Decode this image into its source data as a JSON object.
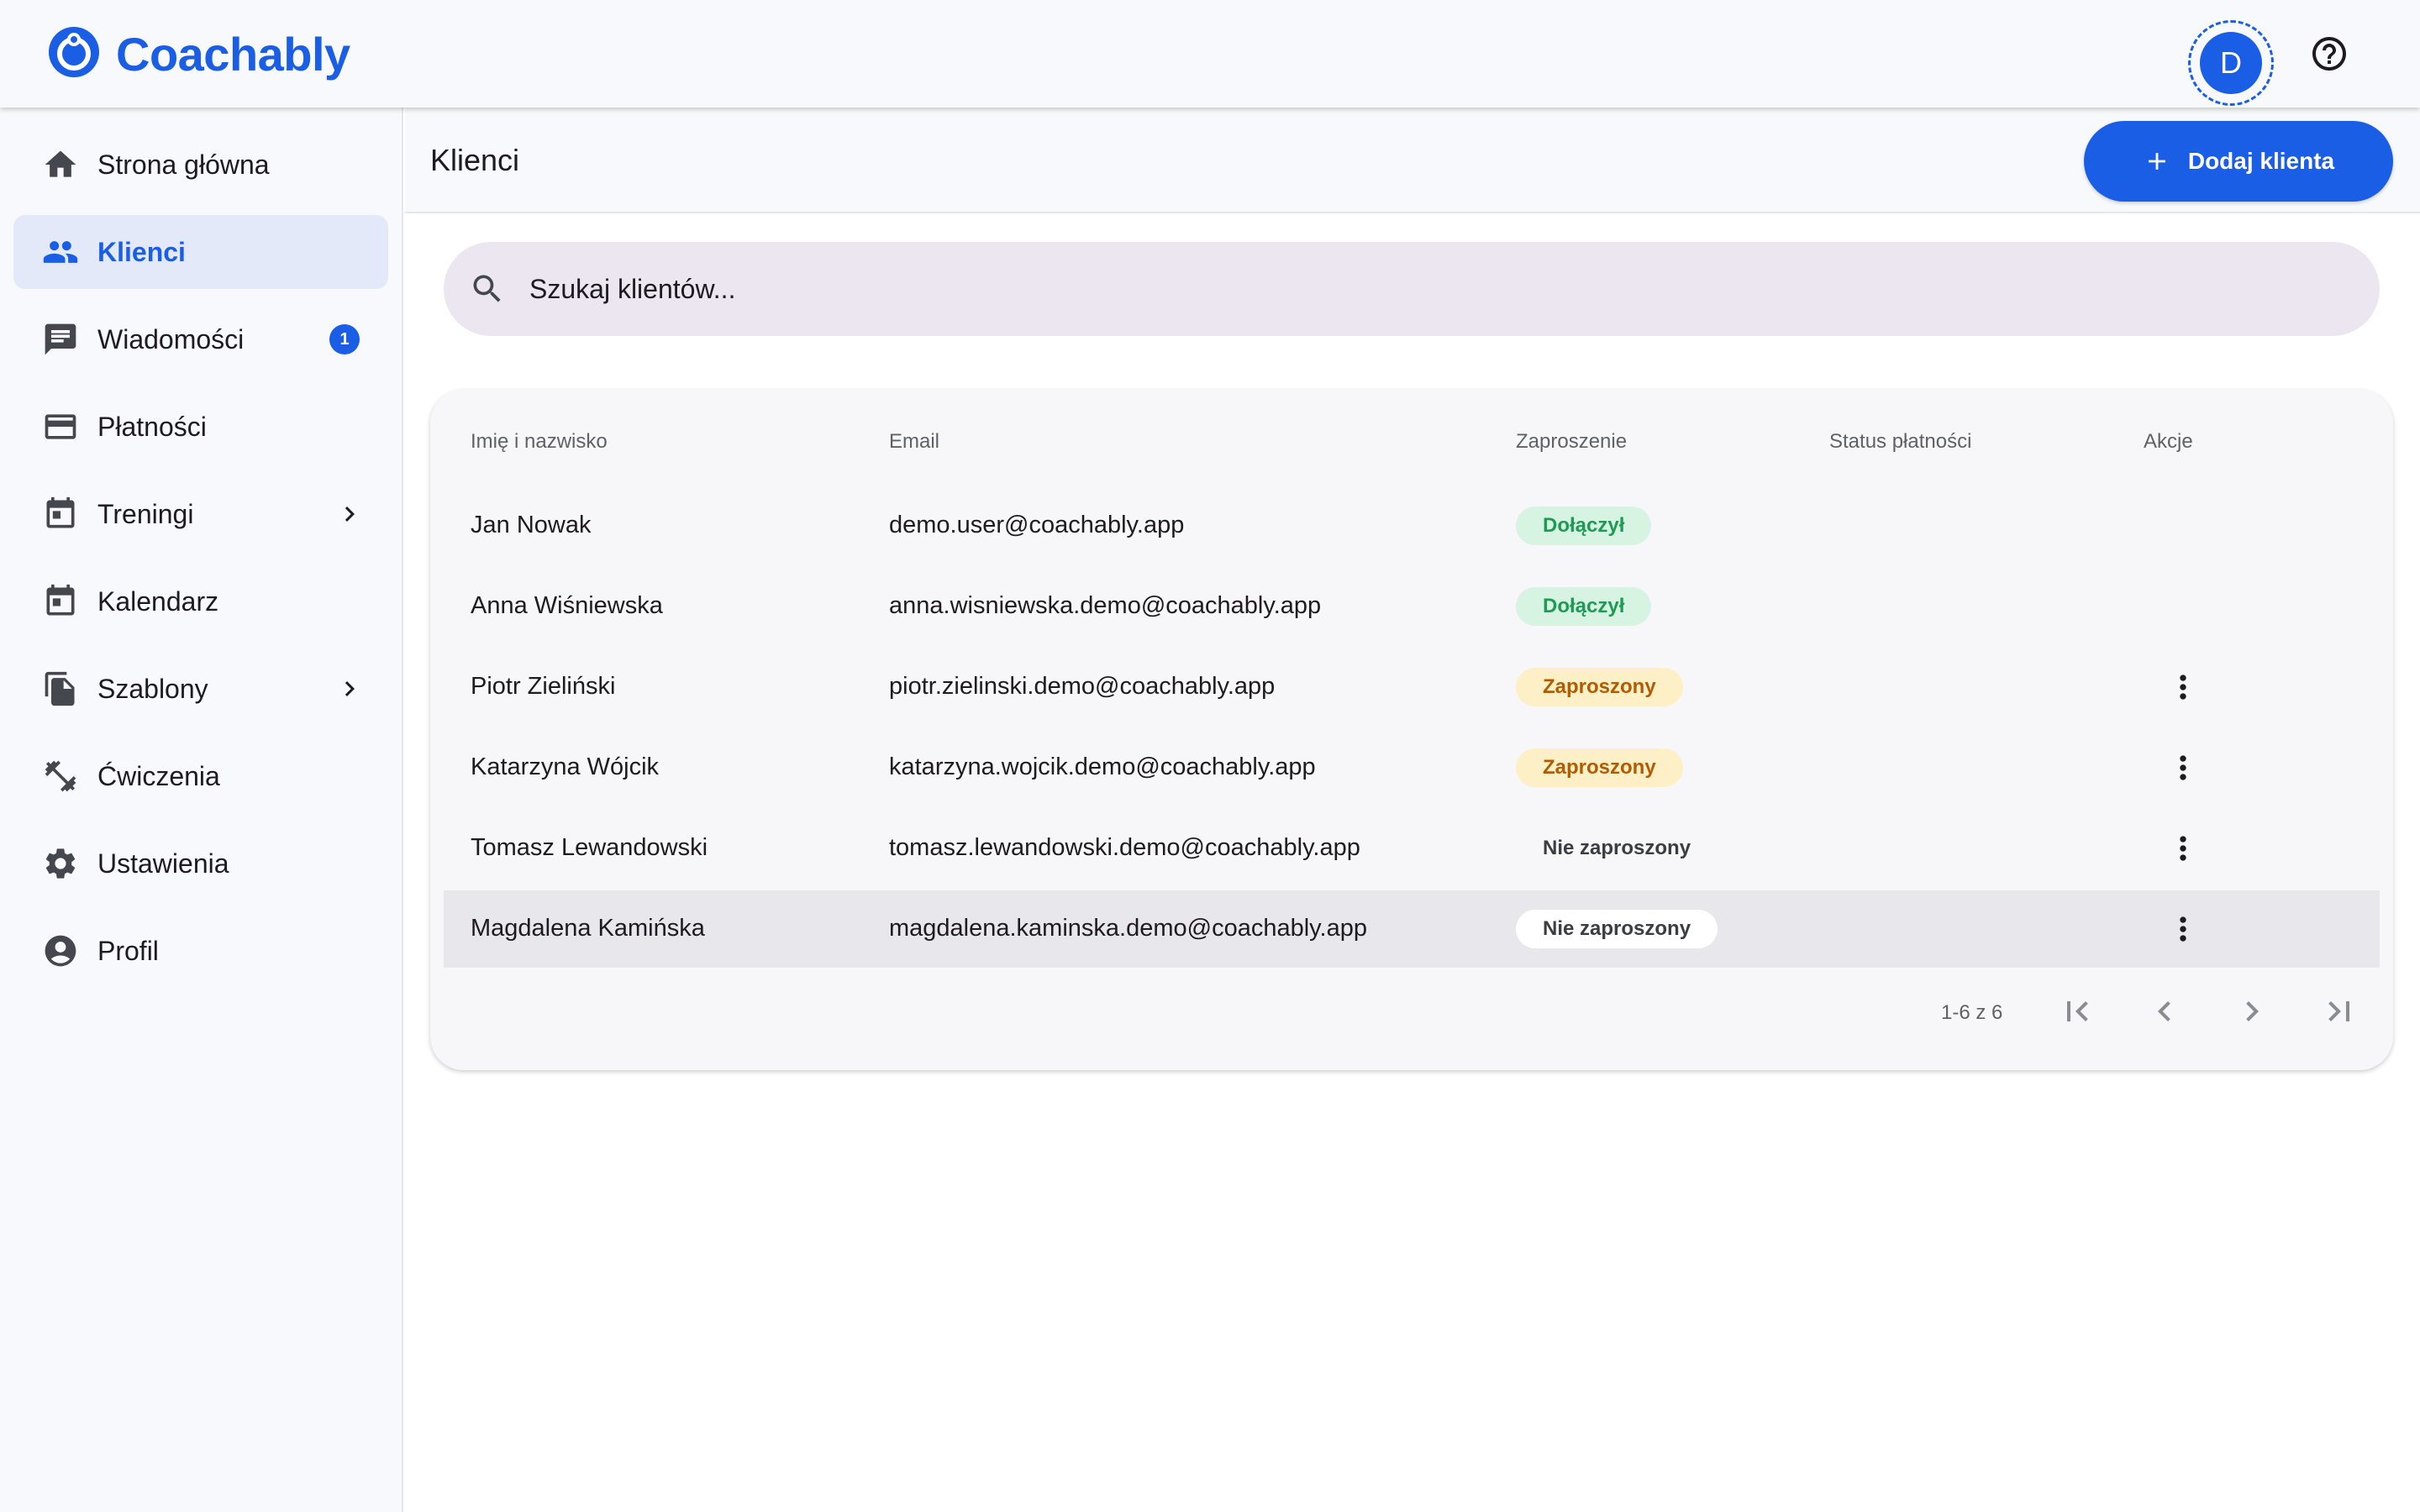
{
  "app": {
    "name": "Coachably"
  },
  "topbar": {
    "avatar_initial": "D"
  },
  "sidebar": {
    "items": [
      {
        "label": "Strona główna",
        "icon": "home-icon"
      },
      {
        "label": "Klienci",
        "icon": "people-icon",
        "active": true
      },
      {
        "label": "Wiadomości",
        "icon": "message-icon",
        "badge": "1"
      },
      {
        "label": "Płatności",
        "icon": "credit-card-icon"
      },
      {
        "label": "Treningi",
        "icon": "calendar-icon",
        "expandable": true
      },
      {
        "label": "Kalendarz",
        "icon": "calendar-icon"
      },
      {
        "label": "Szablony",
        "icon": "copy-icon",
        "expandable": true
      },
      {
        "label": "Ćwiczenia",
        "icon": "dumbbell-icon"
      },
      {
        "label": "Ustawienia",
        "icon": "gear-icon"
      },
      {
        "label": "Profil",
        "icon": "account-circle-icon"
      }
    ]
  },
  "header": {
    "title": "Klienci",
    "add_button_label": "Dodaj klienta"
  },
  "search": {
    "placeholder": "Szukaj klientów..."
  },
  "table": {
    "columns": [
      "Imię i nazwisko",
      "Email",
      "Zaproszenie",
      "Status płatności",
      "Akcje"
    ],
    "rows": [
      {
        "name": "Jan Nowak",
        "email": "demo.user@coachably.app",
        "invite": "Dołączył",
        "invite_status": "joined",
        "payment": "",
        "has_actions": false
      },
      {
        "name": "Anna Wiśniewska",
        "email": "anna.wisniewska.demo@coachably.app",
        "invite": "Dołączył",
        "invite_status": "joined",
        "payment": "",
        "has_actions": false
      },
      {
        "name": "Piotr Zieliński",
        "email": "piotr.zielinski.demo@coachably.app",
        "invite": "Zaproszony",
        "invite_status": "invited",
        "payment": "",
        "has_actions": true
      },
      {
        "name": "Katarzyna Wójcik",
        "email": "katarzyna.wojcik.demo@coachably.app",
        "invite": "Zaproszony",
        "invite_status": "invited",
        "payment": "",
        "has_actions": true
      },
      {
        "name": "Tomasz Lewandowski",
        "email": "tomasz.lewandowski.demo@coachably.app",
        "invite": "Nie zaproszony",
        "invite_status": "none",
        "payment": "",
        "has_actions": true
      },
      {
        "name": "Magdalena Kamińska",
        "email": "magdalena.kaminska.demo@coachably.app",
        "invite": "Nie zaproszony",
        "invite_status": "none",
        "payment": "",
        "has_actions": true,
        "hovered": true
      }
    ]
  },
  "pagination": {
    "range_label": "1-6 z 6"
  },
  "colors": {
    "accent": "#1a5ee6",
    "joined": "#1f9a54",
    "invited": "#b25b00"
  }
}
